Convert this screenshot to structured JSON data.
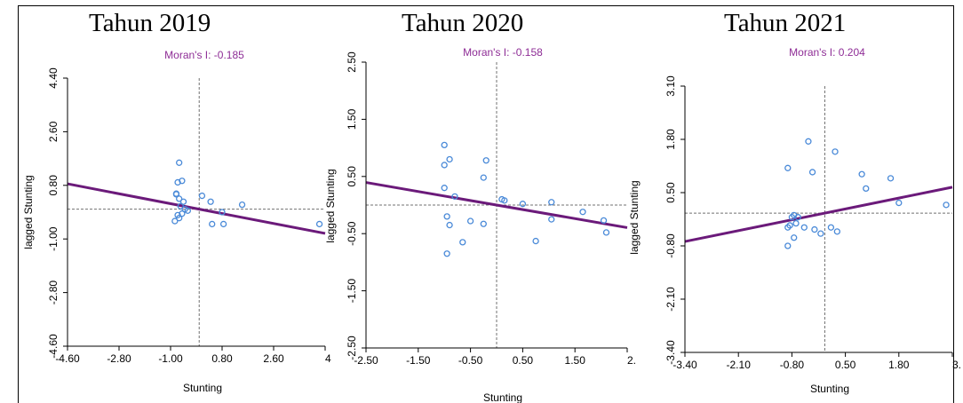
{
  "chart_data": [
    {
      "type": "scatter",
      "panel_title": "Tahun 2019",
      "title": "Moran's I: -0.185",
      "xlabel": "Stunting",
      "ylabel": "lagged Stunting",
      "xlim": [
        -4.6,
        4.4
      ],
      "ylim": [
        -4.6,
        4.4
      ],
      "xticks": [
        "-4.60",
        "-2.80",
        "-1.00",
        "0.80",
        "2.60",
        "4"
      ],
      "yticks": [
        "-4.60",
        "-2.80",
        "-1.00",
        "0.80",
        "2.60",
        "4.40"
      ],
      "regression_slope": -0.185,
      "points": [
        {
          "x": -0.8,
          "y": 0.52
        },
        {
          "x": -0.7,
          "y": 1.56
        },
        {
          "x": -0.75,
          "y": 0.9
        },
        {
          "x": -0.6,
          "y": 0.95
        },
        {
          "x": -0.8,
          "y": 0.5
        },
        {
          "x": -0.7,
          "y": 0.35
        },
        {
          "x": -0.65,
          "y": 0.1
        },
        {
          "x": -0.75,
          "y": -0.2
        },
        {
          "x": -0.6,
          "y": -0.15
        },
        {
          "x": -0.5,
          "y": 0.0
        },
        {
          "x": -0.7,
          "y": -0.3
        },
        {
          "x": -0.85,
          "y": -0.4
        },
        {
          "x": -0.55,
          "y": 0.25
        },
        {
          "x": -0.4,
          "y": -0.05
        },
        {
          "x": 0.1,
          "y": 0.45
        },
        {
          "x": 0.4,
          "y": 0.25
        },
        {
          "x": 0.8,
          "y": -0.1
        },
        {
          "x": 1.5,
          "y": 0.15
        },
        {
          "x": 0.45,
          "y": -0.5
        },
        {
          "x": 0.85,
          "y": -0.5
        },
        {
          "x": 4.2,
          "y": -0.5
        }
      ]
    },
    {
      "type": "scatter",
      "panel_title": "Tahun 2020",
      "title": "Moran's I: -0.158",
      "xlabel": "Stunting",
      "ylabel": "lagged Stunting",
      "xlim": [
        -2.5,
        2.5
      ],
      "ylim": [
        -2.5,
        2.5
      ],
      "xticks": [
        "-2.50",
        "-1.50",
        "-0.50",
        "0.50",
        "1.50",
        "2."
      ],
      "yticks": [
        "-2.50",
        "-1.50",
        "-0.50",
        "0.50",
        "1.50",
        "2.50"
      ],
      "regression_slope": -0.158,
      "points": [
        {
          "x": -1.0,
          "y": 1.05
        },
        {
          "x": -0.9,
          "y": 0.8
        },
        {
          "x": -1.0,
          "y": 0.7
        },
        {
          "x": -1.0,
          "y": 0.3
        },
        {
          "x": -0.8,
          "y": 0.15
        },
        {
          "x": -0.95,
          "y": -0.2
        },
        {
          "x": -0.9,
          "y": -0.35
        },
        {
          "x": -0.95,
          "y": -0.85
        },
        {
          "x": -0.65,
          "y": -0.65
        },
        {
          "x": -0.5,
          "y": -0.28
        },
        {
          "x": -0.25,
          "y": -0.33
        },
        {
          "x": -0.25,
          "y": 0.48
        },
        {
          "x": -0.2,
          "y": 0.78
        },
        {
          "x": 0.1,
          "y": 0.1
        },
        {
          "x": 0.15,
          "y": 0.08
        },
        {
          "x": 0.5,
          "y": 0.02
        },
        {
          "x": 1.05,
          "y": 0.05
        },
        {
          "x": 1.05,
          "y": -0.25
        },
        {
          "x": 0.75,
          "y": -0.63
        },
        {
          "x": 1.65,
          "y": -0.12
        },
        {
          "x": 2.05,
          "y": -0.27
        },
        {
          "x": 2.1,
          "y": -0.48
        }
      ]
    },
    {
      "type": "scatter",
      "panel_title": "Tahun 2021",
      "title": "Moran's I: 0.204",
      "xlabel": "Stunting",
      "ylabel": "lagged Stunting",
      "xlim": [
        -3.4,
        3.1
      ],
      "ylim": [
        -3.4,
        3.1
      ],
      "xticks": [
        "-3.40",
        "-2.10",
        "-0.80",
        "0.50",
        "1.80",
        "3."
      ],
      "yticks": [
        "-3.40",
        "-2.10",
        "-0.80",
        "0.50",
        "1.80",
        "3.10"
      ],
      "regression_slope": 0.204,
      "points": [
        {
          "x": -0.9,
          "y": 1.1
        },
        {
          "x": -0.4,
          "y": 1.75
        },
        {
          "x": -0.3,
          "y": 1.0
        },
        {
          "x": 0.25,
          "y": 1.5
        },
        {
          "x": 0.9,
          "y": 0.95
        },
        {
          "x": 1.0,
          "y": 0.6
        },
        {
          "x": 1.6,
          "y": 0.85
        },
        {
          "x": 1.8,
          "y": 0.25
        },
        {
          "x": 2.95,
          "y": 0.2
        },
        {
          "x": -0.9,
          "y": -0.35
        },
        {
          "x": -0.85,
          "y": -0.3
        },
        {
          "x": -0.8,
          "y": -0.1
        },
        {
          "x": -0.75,
          "y": -0.05
        },
        {
          "x": -0.7,
          "y": -0.25
        },
        {
          "x": -0.65,
          "y": -0.1
        },
        {
          "x": -0.5,
          "y": -0.35
        },
        {
          "x": -0.25,
          "y": -0.4
        },
        {
          "x": -0.1,
          "y": -0.5
        },
        {
          "x": 0.15,
          "y": -0.35
        },
        {
          "x": 0.3,
          "y": -0.45
        },
        {
          "x": -0.75,
          "y": -0.6
        },
        {
          "x": -0.9,
          "y": -0.8
        }
      ]
    }
  ],
  "colors": {
    "point": "#4a8ad8",
    "regression": "#6b1a7a",
    "title": "#8e2d96",
    "axis": "#000000",
    "reference": "#707070"
  }
}
